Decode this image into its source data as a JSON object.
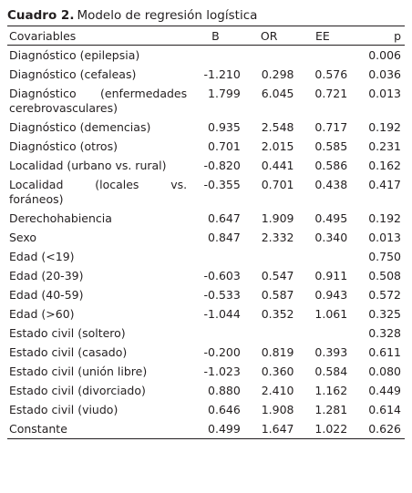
{
  "title": {
    "label": "Cuadro 2.",
    "text": "Modelo de regresión logística"
  },
  "table": {
    "header": [
      "Covariables",
      "B",
      "OR",
      "EE",
      "p"
    ],
    "rows": [
      [
        "Diagnóstico (epilepsia)",
        null,
        null,
        null,
        "0.006"
      ],
      [
        "Diagnóstico (cefaleas)",
        "-1.210",
        "0.298",
        "0.576",
        "0.036"
      ],
      [
        "Diagnóstico (enfermedades cerebrovasculares)",
        "1.799",
        "6.045",
        "0.721",
        "0.013"
      ],
      [
        "Diagnóstico (demencias)",
        "0.935",
        "2.548",
        "0.717",
        "0.192"
      ],
      [
        "Diagnóstico (otros)",
        "0.701",
        "2.015",
        "0.585",
        "0.231"
      ],
      [
        "Localidad (urbano vs. rural)",
        "-0.820",
        "0.441",
        "0.586",
        "0.162"
      ],
      [
        "Localidad (locales vs. foráneos)",
        "-0.355",
        "0.701",
        "0.438",
        "0.417"
      ],
      [
        "Derechohabiencia",
        "0.647",
        "1.909",
        "0.495",
        "0.192"
      ],
      [
        "Sexo",
        "0.847",
        "2.332",
        "0.340",
        "0.013"
      ],
      [
        "Edad (<19)",
        null,
        null,
        null,
        "0.750"
      ],
      [
        "Edad (20-39)",
        "-0.603",
        "0.547",
        "0.911",
        "0.508"
      ],
      [
        "Edad (40-59)",
        "-0.533",
        "0.587",
        "0.943",
        "0.572"
      ],
      [
        "Edad (>60)",
        "-1.044",
        "0.352",
        "1.061",
        "0.325"
      ],
      [
        "Estado civil (soltero)",
        null,
        null,
        null,
        "0.328"
      ],
      [
        "Estado civil (casado)",
        "-0.200",
        "0.819",
        "0.393",
        "0.611"
      ],
      [
        "Estado civil (unión libre)",
        "-1.023",
        "0.360",
        "0.584",
        "0.080"
      ],
      [
        "Estado civil (divorciado)",
        "0.880",
        "2.410",
        "1.162",
        "0.449"
      ],
      [
        "Estado civil (viudo)",
        "0.646",
        "1.908",
        "1.281",
        "0.614"
      ],
      [
        "Constante",
        "0.499",
        "1.647",
        "1.022",
        "0.626"
      ]
    ]
  }
}
